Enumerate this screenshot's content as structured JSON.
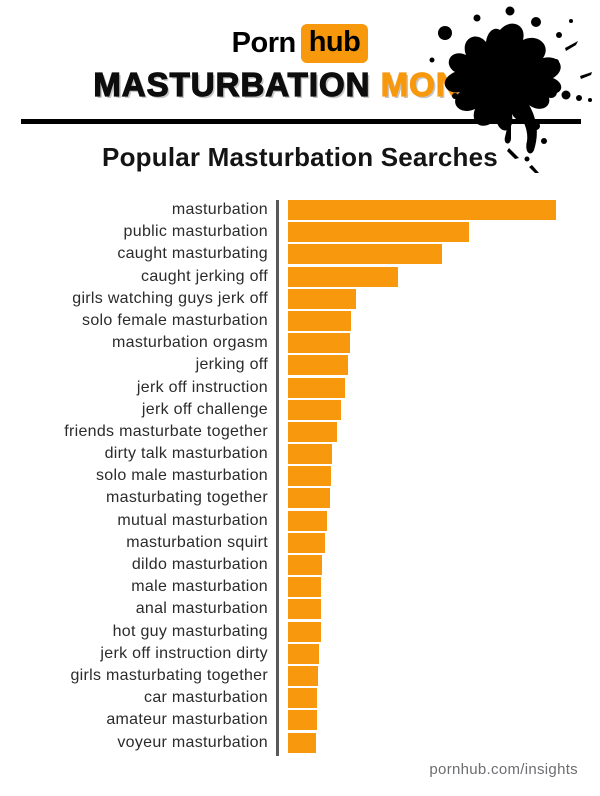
{
  "logo": {
    "porn": "Porn",
    "hub": "hub"
  },
  "header": {
    "word_black": "MASTURBATION ",
    "word_orange": "MONTH"
  },
  "footer": {
    "link_text": "pornhub.com/insights"
  },
  "colors": {
    "accent_orange": "#F8990D",
    "ink_black": "#000000",
    "axis_gray": "#58595B",
    "footer_gray": "#6D6E71"
  },
  "chart_data": {
    "type": "bar",
    "orientation": "horizontal",
    "title": "Popular Masturbation Searches",
    "xlabel": "",
    "ylabel": "",
    "legend": false,
    "gridlines": false,
    "value_labels": false,
    "axis_note": "no numeric axis shown; values are relative search volume, top term = 100",
    "xlim": [
      0,
      100
    ],
    "categories": [
      "masturbation",
      "public masturbation",
      "caught masturbating",
      "caught jerking off",
      "girls watching guys jerk off",
      "solo female masturbation",
      "masturbation orgasm",
      "jerking off",
      "jerk off instruction",
      "jerk off challenge",
      "friends masturbate together",
      "dirty talk masturbation",
      "solo male masturbation",
      "masturbating together",
      "mutual masturbation",
      "masturbation squirt",
      "dildo masturbation",
      "male masturbation",
      "anal masturbation",
      "hot guy masturbating",
      "jerk off instruction dirty",
      "girls masturbating together",
      "car masturbation",
      "amateur masturbation",
      "voyeur masturbation"
    ],
    "values": [
      100,
      67.5,
      57.5,
      41.0,
      25.4,
      23.5,
      23.1,
      22.4,
      21.3,
      19.8,
      18.3,
      16.4,
      16.0,
      15.7,
      14.6,
      13.8,
      12.7,
      12.4,
      12.3,
      12.2,
      11.6,
      11.2,
      10.9,
      10.7,
      10.4
    ]
  }
}
